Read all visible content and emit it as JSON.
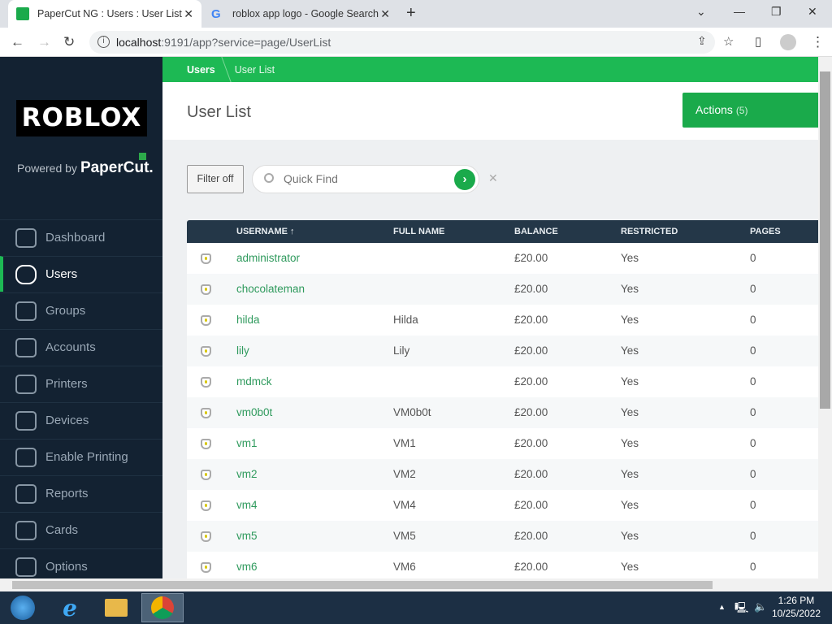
{
  "browser": {
    "tabs": [
      {
        "title": "PaperCut NG : Users : User List",
        "active": true
      },
      {
        "title": "roblox app logo - Google Search",
        "active": false
      }
    ],
    "url_host": "localhost",
    "url_path": ":9191/app?service=page/UserList"
  },
  "sidebar": {
    "logo": "ROBLOX",
    "powered_by": "Powered by",
    "brand": "PaperCut.",
    "items": [
      {
        "label": "Dashboard",
        "icon": "chart-line-icon"
      },
      {
        "label": "Users",
        "icon": "user-icon",
        "active": true
      },
      {
        "label": "Groups",
        "icon": "group-icon"
      },
      {
        "label": "Accounts",
        "icon": "account-icon"
      },
      {
        "label": "Printers",
        "icon": "printer-icon"
      },
      {
        "label": "Devices",
        "icon": "device-icon"
      },
      {
        "label": "Enable Printing",
        "icon": "enable-printing-icon"
      },
      {
        "label": "Reports",
        "icon": "report-icon"
      },
      {
        "label": "Cards",
        "icon": "card-icon"
      },
      {
        "label": "Options",
        "icon": "gear-icon"
      }
    ]
  },
  "breadcrumb": [
    "Users",
    "User List"
  ],
  "page_title": "User List",
  "actions": {
    "label": "Actions",
    "count": "(5)"
  },
  "filter_label": "Filter off",
  "search": {
    "placeholder": "Quick Find",
    "value": ""
  },
  "table": {
    "headers": [
      "USERNAME ↑",
      "FULL NAME",
      "BALANCE",
      "RESTRICTED",
      "PAGES"
    ],
    "rows": [
      [
        "administrator",
        "",
        "£20.00",
        "Yes",
        "0"
      ],
      [
        "chocolateman",
        "",
        "£20.00",
        "Yes",
        "0"
      ],
      [
        "hilda",
        "Hilda",
        "£20.00",
        "Yes",
        "0"
      ],
      [
        "lily",
        "Lily",
        "£20.00",
        "Yes",
        "0"
      ],
      [
        "mdmck",
        "",
        "£20.00",
        "Yes",
        "0"
      ],
      [
        "vm0b0t",
        "VM0b0t",
        "£20.00",
        "Yes",
        "0"
      ],
      [
        "vm1",
        "VM1",
        "£20.00",
        "Yes",
        "0"
      ],
      [
        "vm2",
        "VM2",
        "£20.00",
        "Yes",
        "0"
      ],
      [
        "vm4",
        "VM4",
        "£20.00",
        "Yes",
        "0"
      ],
      [
        "vm5",
        "VM5",
        "£20.00",
        "Yes",
        "0"
      ],
      [
        "vm6",
        "VM6",
        "£20.00",
        "Yes",
        "0"
      ]
    ]
  },
  "taskbar": {
    "time": "1:26 PM",
    "date": "10/25/2022"
  },
  "colors": {
    "accent": "#1db954",
    "sidebar": "#132232",
    "table_header": "#243748",
    "link": "#2f9a5d"
  }
}
